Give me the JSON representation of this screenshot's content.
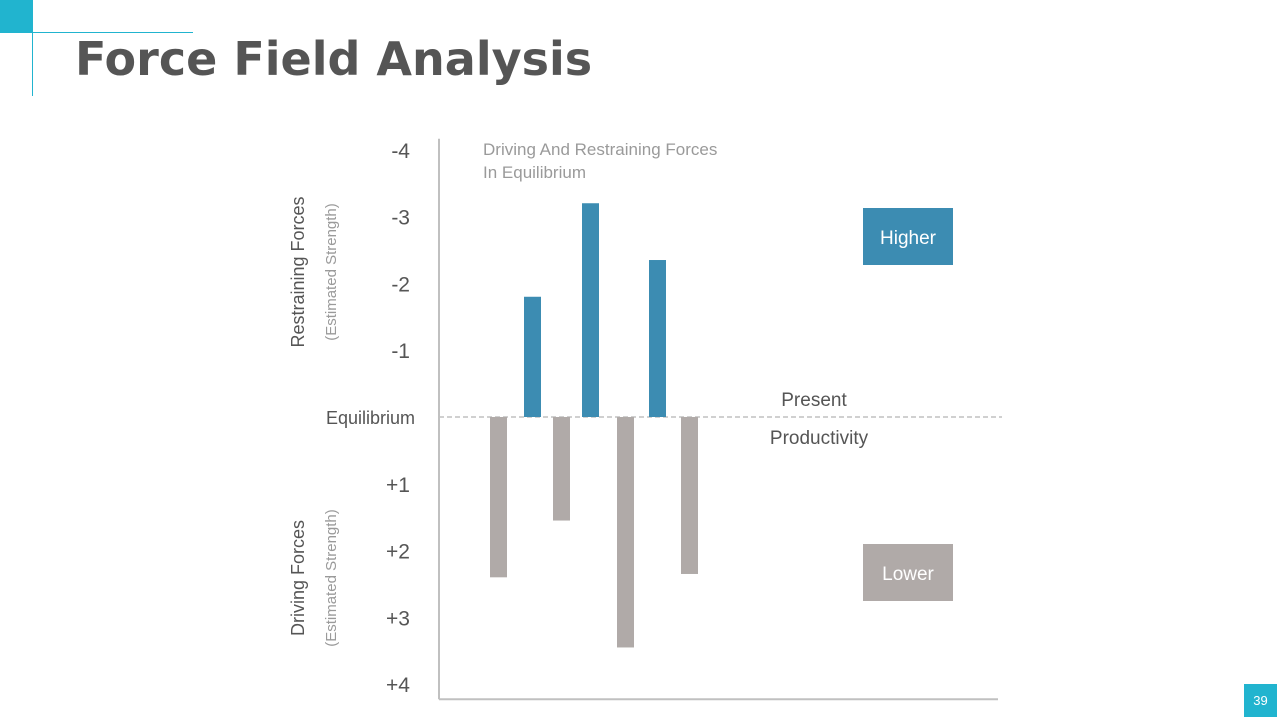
{
  "slide": {
    "title": "Force Field Analysis",
    "page_number": "39"
  },
  "colors": {
    "accent": "#21b4cf",
    "restraining": "#3c8cb2",
    "driving": "#b0aaa8",
    "text": "#555555",
    "muted_text": "#9a9a9a",
    "axis": "#c0c0c0"
  },
  "chart_data": {
    "type": "bar",
    "title": "Driving And Restraining Forces\nIn Equilibrium",
    "x_axis_title": "",
    "ylim": [
      -4,
      4
    ],
    "y_ticks": [
      {
        "value": -4,
        "label": "-4"
      },
      {
        "value": -3,
        "label": "-3"
      },
      {
        "value": -2,
        "label": "-2"
      },
      {
        "value": -1,
        "label": "-1"
      },
      {
        "value": 0,
        "label": "Equilibrium"
      },
      {
        "value": 1,
        "label": "+1"
      },
      {
        "value": 2,
        "label": "+2"
      },
      {
        "value": 3,
        "label": "+3"
      },
      {
        "value": 4,
        "label": "+4"
      }
    ],
    "y_axis_labels": {
      "restraining": {
        "title": "Restraining Forces",
        "subtitle": "(Estimated Strength)"
      },
      "driving": {
        "title": "Driving Forces",
        "subtitle": "(Estimated Strength)"
      }
    },
    "series": [
      {
        "name": "Driving Forces",
        "legend": "Lower",
        "values": [
          2.4,
          1.55,
          3.45,
          2.35
        ]
      },
      {
        "name": "Restraining Forces",
        "legend": "Higher",
        "values": [
          -1.8,
          -3.2,
          -2.35
        ]
      }
    ],
    "equilibrium_line": {
      "value": 0,
      "label_above": "Present",
      "label_below": "Productivity"
    },
    "legend": [
      {
        "label": "Higher",
        "series": "Restraining Forces"
      },
      {
        "label": "Lower",
        "series": "Driving Forces"
      }
    ]
  }
}
